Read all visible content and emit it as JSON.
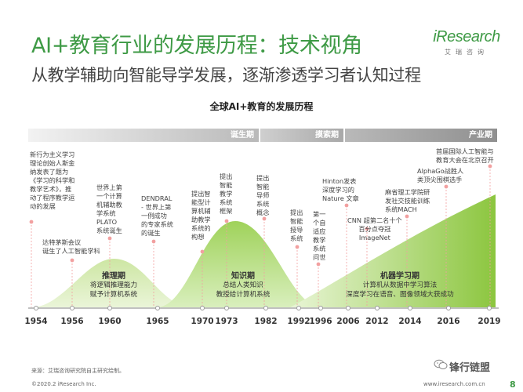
{
  "header": {
    "title": "AI+教育行业的发展历程：技术视角",
    "subtitle": "从教学辅助向智能导学发展，逐渐渗透学习者认知过程"
  },
  "logo": {
    "brand": "iResearch",
    "brand_cn": "艾瑞咨询"
  },
  "chart_title": "全球AI+教育的发展历程",
  "phases": [
    {
      "label": "诞生期"
    },
    {
      "label": "摸索期"
    },
    {
      "label": "产业期"
    }
  ],
  "waves": [
    {
      "label": "推理期",
      "desc_1": "将逻辑推理能力",
      "desc_2": "赋予计算机系统"
    },
    {
      "label": "知识期",
      "desc_1": "总结人类知识",
      "desc_2": "教授给计算机系统"
    },
    {
      "label": "机器学习期",
      "desc_1": "计算机从数据中学习算法",
      "desc_2": "深度学习在语音、图像领域大获成功"
    }
  ],
  "events": [
    {
      "lines": [
        "新行为主义学习",
        "理论创始人斯金",
        "纳发表了题为",
        "《学习的科学和",
        "教学艺术》，推",
        "动了程序教学运",
        "动的发展"
      ]
    },
    {
      "lines": [
        "达特茅斯会议",
        "诞生了人工智能学科"
      ]
    },
    {
      "lines": [
        "世界上第",
        "一个计算",
        "机辅助教",
        "学系统",
        "PLATO",
        "系统诞生"
      ]
    },
    {
      "lines": [
        "DENDRAL",
        "- 世界上第",
        "一例成功",
        "的专家系统",
        "的诞生"
      ]
    },
    {
      "lines": [
        "提出智",
        "能型计",
        "算机辅",
        "助教学",
        "系统的",
        "构想"
      ]
    },
    {
      "lines": [
        "提出",
        "智能",
        "教学",
        "系统",
        "框架"
      ]
    },
    {
      "lines": [
        "提出",
        "智能",
        "导师",
        "系统",
        "概念"
      ]
    },
    {
      "lines": [
        "提出",
        "智能",
        "授导",
        "系统"
      ]
    },
    {
      "lines": [
        "第一",
        "个自",
        "适应",
        "教学",
        "系统",
        "问世"
      ]
    },
    {
      "lines": [
        "Hinton发表",
        "深度学习的",
        "Nature 文章"
      ]
    },
    {
      "lines": [
        "CNN 超第二名十个",
        "百分点夺冠",
        "ImageNet"
      ]
    },
    {
      "lines": [
        "麻省理工学院研",
        "发社交技能训练",
        "系统MACH"
      ]
    },
    {
      "lines": [
        "AlphaGo战胜人",
        "类顶尖围棋选手"
      ]
    },
    {
      "lines": [
        "首届国际人工智能与",
        "教育大会在北京召开"
      ]
    }
  ],
  "years": [
    "1954",
    "1956",
    "1960",
    "1965",
    "1970",
    "1973",
    "1982",
    "1992",
    "1996",
    "2006",
    "2012",
    "2014",
    "2016",
    "2019"
  ],
  "footer": {
    "source": "来源：艾瑞咨询研究院自主研究绘制。",
    "copyright": "©2020.2 iResearch Inc.",
    "site": "www.iresearch.com.cn",
    "watermark": "锋行链盟",
    "page": "8"
  },
  "colors": {
    "brand_green": "#3e9a45",
    "wave_green": "#8cc63f",
    "dot_pink": "#f2a0a0"
  }
}
